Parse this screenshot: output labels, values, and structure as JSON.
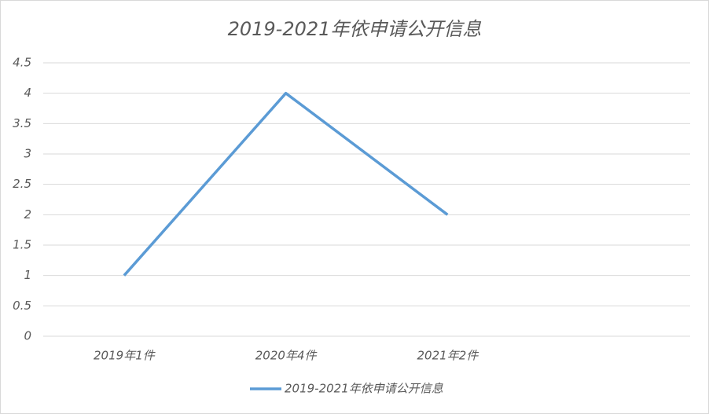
{
  "chart_data": {
    "type": "line",
    "title": "2019-2021年依申请公开信息",
    "categories": [
      "2019年1件",
      "2020年4件",
      "2021年2件",
      null
    ],
    "series": [
      {
        "name": "2019-2021年依申请公开信息",
        "color": "#5b9bd5",
        "values": [
          1,
          4,
          2,
          null
        ]
      }
    ],
    "ylim": [
      0,
      4.5
    ],
    "yticks": [
      0,
      0.5,
      1,
      1.5,
      2,
      2.5,
      3,
      3.5,
      4,
      4.5
    ],
    "grid": true,
    "legend": "bottom"
  }
}
